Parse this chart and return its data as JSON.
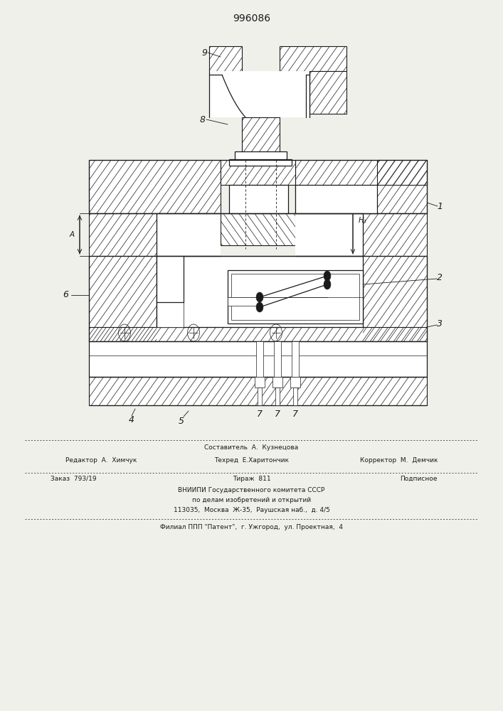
{
  "title": "996086",
  "bg_color": "#f0f0eb",
  "line_color": "#1a1a1a",
  "footer": {
    "line1": "Составитель  А.  Кузнецова",
    "line2_left": "Редактор  А.  Химчук",
    "line2_mid": "Техред  Е.Харитончик",
    "line2_right": "Корректор  М.  Демчик",
    "line3_left": "Заказ  793/19",
    "line3_mid": "Тираж  811",
    "line3_right": "Подписное",
    "line4a": "ВНИИПИ Государственного комитета СССР",
    "line4b": "по делам изобретений и открытий",
    "line4c": "113035,  Москва  Ж-35,  Раушская наб.,  д. 4/5",
    "line5": "Филиал ППП \"Патент\",  г. Ужгород,  ул. Проектная,  4"
  }
}
